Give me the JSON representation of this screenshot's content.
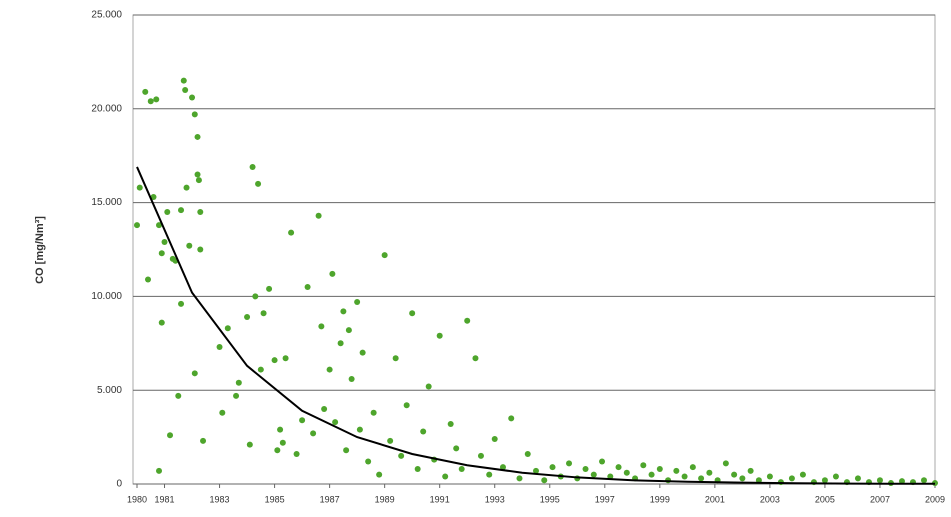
{
  "chart_data": {
    "type": "scatter",
    "y_label": "CO [mg/Nm³]",
    "xlim": [
      1980,
      2009
    ],
    "xticks": [
      1980,
      1981,
      1983,
      1985,
      1987,
      1989,
      1991,
      1993,
      1995,
      1997,
      1999,
      2001,
      2003,
      2005,
      2007,
      2009
    ],
    "ylim": [
      0,
      25000
    ],
    "yticks": [
      {
        "value": 0,
        "label": "0"
      },
      {
        "value": 5000,
        "label": "5.000"
      },
      {
        "value": 10000,
        "label": "10.000"
      },
      {
        "value": 15000,
        "label": "15.000"
      },
      {
        "value": 20000,
        "label": "20.000"
      },
      {
        "value": 25000,
        "label": "25.000"
      }
    ],
    "grid": true,
    "series": [
      {
        "type": "scatter",
        "color": "#4ea52c",
        "x": [
          1980.0,
          1980.1,
          1980.3,
          1980.5,
          1980.6,
          1980.4,
          1980.7,
          1980.8,
          1980.9,
          1980.9,
          1981.0,
          1981.1,
          1981.2,
          1981.3,
          1981.4,
          1981.5,
          1981.6,
          1981.6,
          1981.7,
          1981.75,
          1981.8,
          1981.9,
          1982.0,
          1982.1,
          1982.2,
          1982.25,
          1982.2,
          1982.3,
          1982.3,
          1982.1,
          1982.4,
          1980.8,
          1983.0,
          1983.1,
          1983.3,
          1983.6,
          1983.7,
          1984.0,
          1984.1,
          1984.2,
          1984.4,
          1984.3,
          1984.5,
          1984.6,
          1984.8,
          1985.0,
          1985.1,
          1985.2,
          1985.3,
          1985.4,
          1985.6,
          1985.8,
          1986.0,
          1986.2,
          1986.4,
          1986.6,
          1986.7,
          1986.8,
          1987.0,
          1987.1,
          1987.2,
          1987.4,
          1987.5,
          1987.6,
          1987.7,
          1987.8,
          1988.0,
          1988.1,
          1988.2,
          1988.4,
          1988.6,
          1988.8,
          1989.0,
          1989.2,
          1989.4,
          1989.6,
          1989.8,
          1990.0,
          1990.2,
          1990.4,
          1990.6,
          1990.8,
          1991.0,
          1991.2,
          1991.4,
          1991.6,
          1991.8,
          1992.0,
          1992.3,
          1992.5,
          1992.8,
          1993.0,
          1993.3,
          1993.6,
          1993.9,
          1994.2,
          1994.5,
          1994.8,
          1995.1,
          1995.4,
          1995.7,
          1996.0,
          1996.3,
          1996.6,
          1996.9,
          1997.2,
          1997.5,
          1997.8,
          1998.1,
          1998.4,
          1998.7,
          1999.0,
          1999.3,
          1999.6,
          1999.9,
          2000.2,
          2000.5,
          2000.8,
          2001.1,
          2001.4,
          2001.7,
          2002.0,
          2002.3,
          2002.6,
          2003.0,
          2003.4,
          2003.8,
          2004.2,
          2004.6,
          2005.0,
          2005.4,
          2005.8,
          2006.2,
          2006.6,
          2007.0,
          2007.4,
          2007.8,
          2008.2,
          2008.6,
          2009.0
        ],
        "values": [
          13800,
          15800,
          20900,
          20400,
          15300,
          10900,
          20500,
          13800,
          8600,
          12300,
          12900,
          14500,
          2600,
          12000,
          11900,
          4700,
          14600,
          9600,
          21500,
          21000,
          15800,
          12700,
          20600,
          19700,
          16500,
          16200,
          18500,
          14500,
          12500,
          5900,
          2300,
          700,
          7300,
          3800,
          8300,
          4700,
          5400,
          8900,
          2100,
          16900,
          16000,
          10000,
          6100,
          9100,
          10400,
          6600,
          1800,
          2900,
          2200,
          6700,
          13400,
          1600,
          3400,
          10500,
          2700,
          14300,
          8400,
          4000,
          6100,
          11200,
          3300,
          7500,
          9200,
          1800,
          8200,
          5600,
          9700,
          2900,
          7000,
          1200,
          3800,
          500,
          12200,
          2300,
          6700,
          1500,
          4200,
          9100,
          800,
          2800,
          5200,
          1300,
          7900,
          400,
          3200,
          1900,
          800,
          8700,
          6700,
          1500,
          500,
          2400,
          900,
          3500,
          300,
          1600,
          700,
          200,
          900,
          400,
          1100,
          300,
          800,
          500,
          1200,
          400,
          900,
          600,
          300,
          1000,
          500,
          800,
          200,
          700,
          400,
          900,
          300,
          600,
          200,
          1100,
          500,
          300,
          700,
          200,
          400,
          100,
          300,
          500,
          100,
          200,
          400,
          100,
          300,
          100,
          200,
          50,
          150,
          100,
          200,
          50
        ]
      },
      {
        "type": "line",
        "color": "#000000",
        "x": [
          1980,
          1982,
          1984,
          1986,
          1988,
          1990,
          1992,
          1994,
          1996,
          1998,
          2000,
          2002,
          2004,
          2006,
          2009
        ],
        "values": [
          16900,
          10200,
          6300,
          3900,
          2500,
          1600,
          1000,
          600,
          350,
          200,
          120,
          70,
          40,
          20,
          10
        ]
      }
    ]
  }
}
